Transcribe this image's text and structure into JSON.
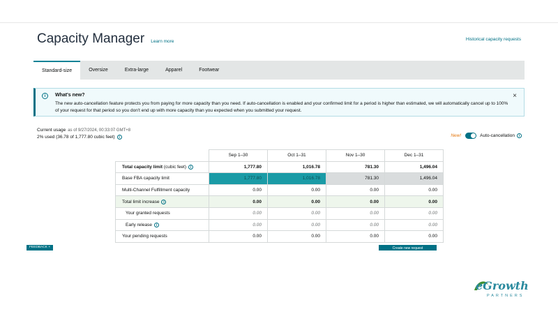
{
  "header": {
    "title": "Capacity Manager",
    "learn_more": "Learn more",
    "historical_link": "Historical capacity requests"
  },
  "tabs": [
    {
      "label": "Standard-size",
      "active": true
    },
    {
      "label": "Oversize",
      "active": false
    },
    {
      "label": "Extra-large",
      "active": false
    },
    {
      "label": "Apparel",
      "active": false
    },
    {
      "label": "Footwear",
      "active": false
    }
  ],
  "banner": {
    "title": "What's new?",
    "text": "The new auto-cancellation feature protects you from paying for more capacity than you need. If auto-cancellation is enabled and your confirmed limit for a period is higher than estimated, we will automatically cancel up to 100% of your request for that period so you don't end up with more capacity than you expected when you submitted your request.",
    "close": "×",
    "info_icon": "i"
  },
  "usage": {
    "label": "Current usage",
    "timestamp": "as of 9/27/2024, 00:33:07 GMT+8",
    "value": "2% used (36.78 of 1,777.80 cubic feet)"
  },
  "auto_cancel": {
    "new_tag": "New!",
    "label": "Auto-cancellation",
    "enabled": true
  },
  "table": {
    "columns": [
      "Sep 1–30",
      "Oct 1–31",
      "Nov 1–30",
      "Dec 1–31"
    ],
    "rows": [
      {
        "label": "Total capacity limit",
        "suffix": " (cubic feet)",
        "values": [
          "1,777.80",
          "1,016.78",
          "781.30",
          "1,496.04"
        ]
      },
      {
        "label": "Base FBA capacity limit",
        "values": [
          "1,777.80",
          "1,016.78",
          "781.30",
          "1,496.04"
        ]
      },
      {
        "label": "Multi-Channel Fulfillment capacity",
        "values": [
          "0.00",
          "0.00",
          "0.00",
          "0.00"
        ]
      },
      {
        "label": "Total limit increase",
        "values": [
          "0.00",
          "0.00",
          "0.00",
          "0.00"
        ]
      },
      {
        "label": "Your granted requests",
        "values": [
          "0.00",
          "0.00",
          "0.00",
          "0.00"
        ]
      },
      {
        "label": "Early release",
        "values": [
          "0.00",
          "0.00",
          "0.00",
          "0.00"
        ]
      },
      {
        "label": "Your pending requests",
        "values": [
          "0.00",
          "0.00",
          "0.00",
          "0.00"
        ]
      }
    ]
  },
  "footer": {
    "feedback": "FEEDBACK ×",
    "create_request": "Create new request"
  },
  "logo": {
    "brand": "eGrowth",
    "tagline": "PARTNERS"
  },
  "colors": {
    "accent": "#007185",
    "teal_cell": "#1a9ba6",
    "grey_cell": "#d9dcdd",
    "new_tag": "#e47911",
    "logo_green": "#3f8f2f",
    "logo_teal": "#2a8a9e"
  }
}
